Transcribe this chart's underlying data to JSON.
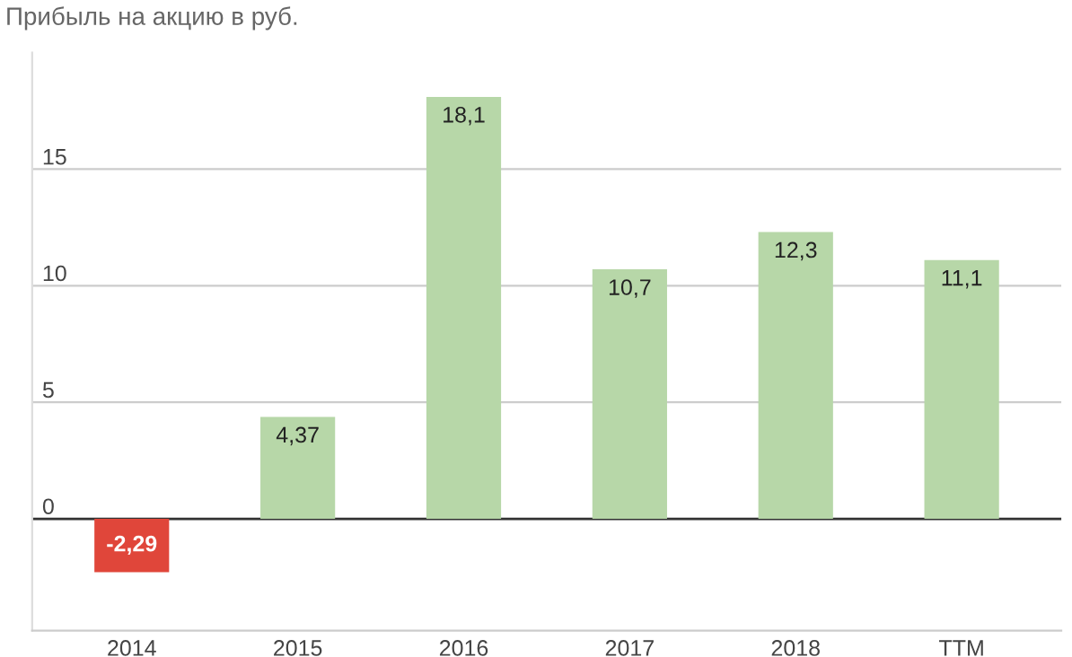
{
  "chart_data": {
    "type": "bar",
    "title": "Прибыль на акцию в руб.",
    "categories": [
      "2014",
      "2015",
      "2016",
      "2017",
      "2018",
      "TTM"
    ],
    "values": [
      -2.29,
      4.37,
      18.1,
      10.7,
      12.3,
      11.1
    ],
    "colors": [
      "#e0463a",
      "#b7d7a8",
      "#b7d7a8",
      "#b7d7a8",
      "#b7d7a8",
      "#b7d7a8"
    ],
    "value_labels": [
      "-2,29",
      "4,37",
      "18,1",
      "10,7",
      "12,3",
      "11,1"
    ],
    "ylim": [
      -4.8,
      20
    ],
    "yticks": [
      0,
      5,
      10,
      15
    ],
    "grid": "y",
    "legend": false
  }
}
